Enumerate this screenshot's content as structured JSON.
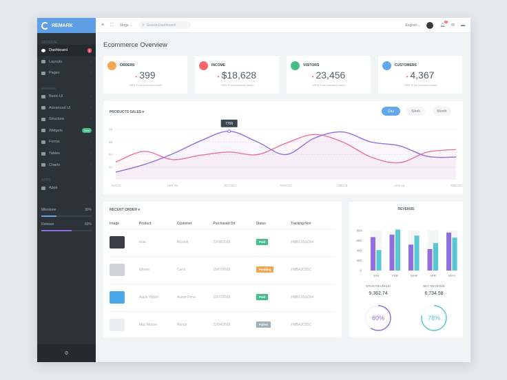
{
  "sidebar": {
    "brand": "REMARK",
    "sections": [
      "GENERAL",
      "Elements",
      "APPS"
    ],
    "items": [
      {
        "label": "Dashboard",
        "badge": "3"
      },
      {
        "label": "Layouts"
      },
      {
        "label": "Pages"
      },
      {
        "label": "Basic UI"
      },
      {
        "label": "Advanced UI"
      },
      {
        "label": "Structure"
      },
      {
        "label": "Widgets",
        "badge": "New"
      },
      {
        "label": "Forms"
      },
      {
        "label": "Tables"
      },
      {
        "label": "Charts"
      },
      {
        "label": "Apps"
      }
    ],
    "progress": [
      {
        "label": "Milestone",
        "value": "30%",
        "fraction": 0.3,
        "color": "#62a8ea"
      },
      {
        "label": "Release",
        "value": "60%",
        "fraction": 0.6,
        "color": "#926dde"
      }
    ],
    "footer_icon": "gear-icon"
  },
  "topbar": {
    "mega": "Mega",
    "search_placeholder": "Search Dashboard",
    "language": "English",
    "notification_count": "1"
  },
  "page_title": "Ecommerce Overview",
  "stats": [
    {
      "label": "ORDERS",
      "value": "399",
      "sub": "+45% From previous month",
      "color": "#f2a654",
      "icon": "cart-icon"
    },
    {
      "label": "INCOME",
      "value": "$18,628",
      "sub": "+45% From previous month",
      "color": "#f96868",
      "icon": "money-icon"
    },
    {
      "label": "VISITORS",
      "value": "23,456",
      "sub": "+25% From previous month",
      "color": "#46be8a",
      "icon": "eye-icon"
    },
    {
      "label": "CUSTOMERS",
      "value": "4,367",
      "sub": "+25% From previous month",
      "color": "#62a8ea",
      "icon": "user-icon"
    }
  ],
  "sales": {
    "title": "PRODUCTS SALES",
    "tabs": [
      "Day",
      "Week",
      "Month"
    ],
    "tooltip": "7700"
  },
  "chart_data": [
    {
      "type": "line",
      "x_ticks": [
        "AUG 8",
        "SEP 15",
        "OCT 22",
        "NOV 24",
        "DEC 8",
        "JAN 15",
        "FEB 22"
      ],
      "y_ticks": [
        "2K",
        "4K",
        "6K",
        "8K"
      ],
      "ylim": [
        0,
        8000
      ],
      "x": [
        0,
        0.5,
        1,
        1.5,
        2,
        2.5,
        3,
        3.5,
        4,
        4.5,
        5,
        5.5,
        6
      ],
      "series": [
        {
          "color": "#926dde",
          "values": [
            1200,
            2400,
            4100,
            6200,
            7700,
            6000,
            4000,
            6600,
            7600,
            6000,
            5400,
            3700,
            3600
          ]
        },
        {
          "color": "#f2729a",
          "values": [
            2800,
            4500,
            3200,
            3900,
            4400,
            4000,
            5800,
            7200,
            6000,
            3600,
            2700,
            4400,
            4800
          ]
        }
      ]
    },
    {
      "type": "bar",
      "title": "REVENUE",
      "categories": [
        "JAN",
        "FEB",
        "MAR",
        "APR",
        "MAY"
      ],
      "y_ticks": [
        "0",
        "200",
        "400",
        "600",
        "800"
      ],
      "ylim": [
        0,
        800
      ],
      "series": [
        {
          "color": "#926dde",
          "values": [
            670,
            720,
            520,
            430,
            760
          ]
        },
        {
          "color": "#57c7d4",
          "values": [
            410,
            820,
            700,
            550,
            660
          ]
        }
      ]
    }
  ],
  "orders": {
    "title": "RECENT ORDER",
    "columns": [
      "Image",
      "Product",
      "Customer",
      "Purchased On",
      "Status",
      "Tracking No#"
    ],
    "rows": [
      {
        "product": "Imac",
        "customer": "Russell",
        "date": "22/08/2015",
        "status": "Paid",
        "status_color": "#46be8a",
        "tracking": "#98BC85SD64",
        "thumb": "#3a3f47"
      },
      {
        "product": "Iphone",
        "customer": "Carol",
        "date": "15/07/2015",
        "status": "Pending",
        "status_color": "#f2a654",
        "tracking": "#985A3C0SC",
        "thumb": "#cfd3d8"
      },
      {
        "product": "Apple Watch",
        "customer": "Austin Pena",
        "date": "10/07/2015",
        "status": "Paid",
        "status_color": "#46be8a",
        "tracking": "#98BC85SD64",
        "thumb": "#4aa8e8"
      },
      {
        "product": "Mac Mouse",
        "customer": "Randy",
        "date": "22/04/2015",
        "status": "Failed",
        "status_color": "#a3afb7",
        "tracking": "#985A3C0SC",
        "thumb": "#eceff1"
      }
    ]
  },
  "revenue": {
    "gross_label": "GROS REVENUE",
    "gross_value": "9,362,74",
    "gross_pct": "60%",
    "gross_fraction": 0.6,
    "net_label": "NET REVENUE",
    "net_value": "6,734,58",
    "net_pct": "78%",
    "net_fraction": 0.78
  }
}
